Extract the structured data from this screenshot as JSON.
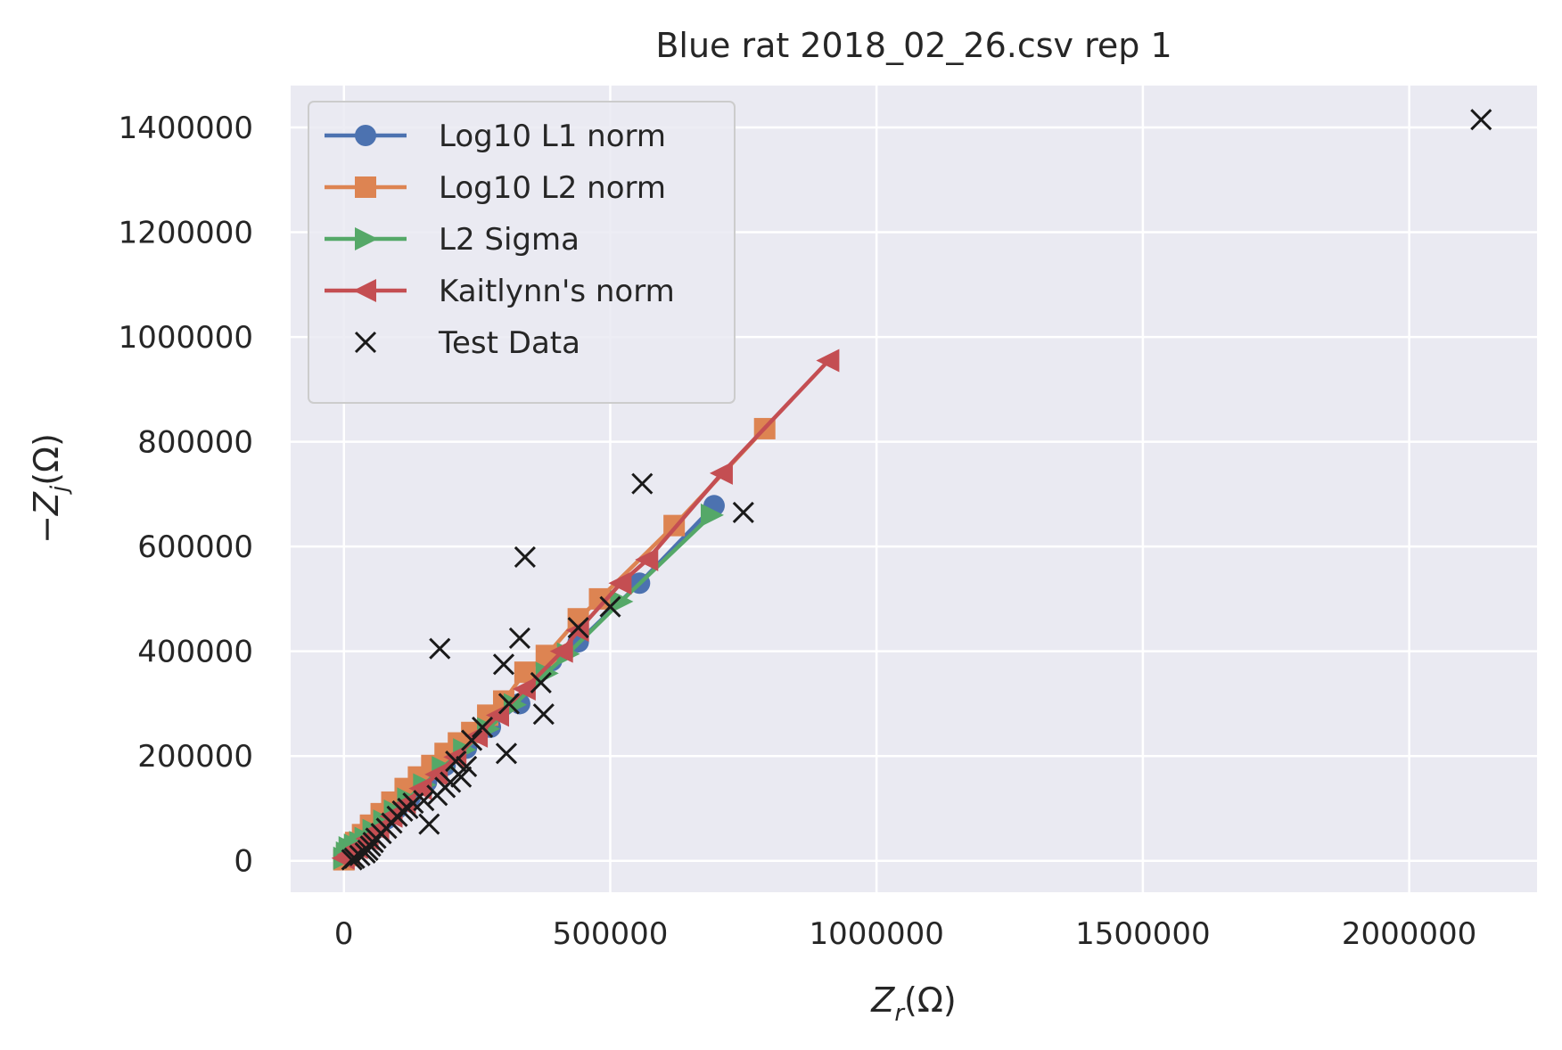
{
  "chart_data": {
    "type": "line",
    "title": "Blue rat 2018_02_26.csv rep 1",
    "xlabel": {
      "prefix": "Z",
      "sub": "r",
      "suffix": "(Ω)"
    },
    "ylabel": {
      "prefix": "−Z",
      "sub": "j",
      "suffix": "(Ω)"
    },
    "xlim": [
      -100000,
      2240000
    ],
    "ylim": [
      -60000,
      1480000
    ],
    "xticks": [
      0,
      500000,
      1000000,
      1500000,
      2000000
    ],
    "yticks": [
      0,
      200000,
      400000,
      600000,
      800000,
      1000000,
      1200000,
      1400000
    ],
    "xtick_labels": [
      "0",
      "500000",
      "1000000",
      "1500000",
      "2000000"
    ],
    "ytick_labels": [
      "0",
      "200000",
      "400000",
      "600000",
      "800000",
      "1000000",
      "1200000",
      "1400000"
    ],
    "grid": true,
    "legend_position": "upper-left",
    "colors": {
      "background": "#eaeaf2",
      "grid": "#ffffff",
      "text": "#262626"
    },
    "series": [
      {
        "name": "Log10 L1 norm",
        "color": "#4c72b0",
        "marker": "circle",
        "x": [
          0,
          5000,
          10000,
          20000,
          30000,
          45000,
          60000,
          80000,
          100000,
          125000,
          155000,
          190000,
          230000,
          275000,
          330000,
          390000,
          440000,
          555000,
          695000
        ],
        "y": [
          10000,
          18000,
          25000,
          30000,
          35000,
          48000,
          62000,
          80000,
          100000,
          122000,
          150000,
          182000,
          215000,
          255000,
          300000,
          382000,
          418000,
          530000,
          678000
        ]
      },
      {
        "name": "Log10 L2 norm",
        "color": "#dd8452",
        "marker": "square",
        "x": [
          0,
          5000,
          12000,
          22000,
          35000,
          50000,
          70000,
          90000,
          115000,
          140000,
          165000,
          190000,
          215000,
          240000,
          270000,
          300000,
          340000,
          380000,
          440000,
          480000,
          620000,
          790000
        ],
        "y": [
          2000,
          10000,
          22000,
          35000,
          50000,
          68000,
          90000,
          112000,
          138000,
          160000,
          182000,
          205000,
          225000,
          245000,
          278000,
          305000,
          360000,
          392000,
          462000,
          500000,
          640000,
          825000
        ]
      },
      {
        "name": "L2 Sigma",
        "color": "#55a868",
        "marker": "triangle-right",
        "x": [
          0,
          5000,
          10000,
          20000,
          30000,
          40000,
          55000,
          75000,
          95000,
          120000,
          150000,
          185000,
          225000,
          270000,
          320000,
          380000,
          420000,
          520000,
          690000
        ],
        "y": [
          5000,
          15000,
          25000,
          30000,
          35000,
          43000,
          58000,
          76000,
          95000,
          118000,
          145000,
          178000,
          212000,
          252000,
          298000,
          358000,
          395000,
          495000,
          660000
        ]
      },
      {
        "name": "Kaitlynn's norm",
        "color": "#c44e52",
        "marker": "triangle-left",
        "x": [
          0,
          10000,
          25000,
          45000,
          65000,
          90000,
          115000,
          145000,
          175000,
          210000,
          250000,
          290000,
          340000,
          410000,
          440000,
          520000,
          570000,
          710000,
          910000
        ],
        "y": [
          5000,
          12000,
          25000,
          42000,
          60000,
          85000,
          108000,
          138000,
          165000,
          198000,
          238000,
          278000,
          328000,
          400000,
          440000,
          530000,
          575000,
          740000,
          955000
        ]
      },
      {
        "name": "Test Data",
        "color": "#1a1a1a",
        "marker": "x",
        "linestyle": "none",
        "x": [
          2135000,
          560000,
          750000,
          340000,
          180000,
          330000,
          440000,
          500000,
          300000,
          370000,
          375000,
          310000,
          305000,
          260000,
          210000,
          220000,
          230000,
          200000,
          160000,
          150000,
          120000,
          100000,
          90000,
          80000,
          70000,
          60000,
          55000,
          50000,
          45000,
          40000,
          30000,
          20000,
          15000,
          190000,
          175000,
          240000,
          130000,
          110000
        ],
        "y": [
          1415000,
          720000,
          665000,
          580000,
          405000,
          425000,
          445000,
          485000,
          375000,
          340000,
          280000,
          300000,
          205000,
          255000,
          190000,
          160000,
          180000,
          150000,
          70000,
          115000,
          100000,
          85000,
          72000,
          62000,
          52000,
          43000,
          35000,
          28000,
          20000,
          15000,
          10000,
          5000,
          2000,
          140000,
          125000,
          230000,
          110000,
          95000
        ]
      }
    ]
  }
}
